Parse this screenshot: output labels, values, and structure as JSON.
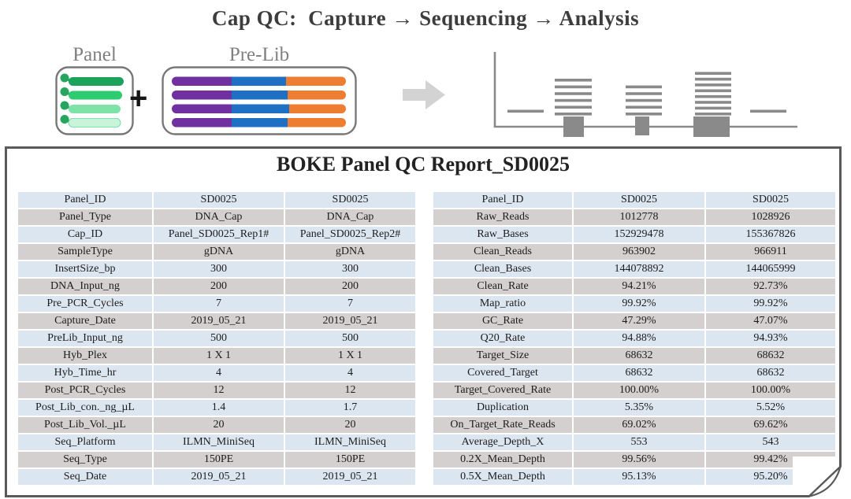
{
  "page_title": "Cap QC:  Capture → Sequencing → Analysis",
  "diagram": {
    "panel_label": "Panel",
    "prelib_label": "Pre-Lib",
    "plus": "+",
    "panel_bar_colors": [
      "#1ba35c",
      "#2ecc71",
      "#7de3a7",
      "#c9f4da"
    ],
    "panel_dot_color": "#26a55e",
    "prelib_segment_colors": [
      "#7030a0",
      "#1f70c4",
      "#ed7d31"
    ],
    "box_border_color": "#777777",
    "arrow_color": "#d3d3d3",
    "coverage_plot": {
      "description": "schematic target coverage plot: read stacks over target blocks on an axis",
      "reads_per_region": [
        1,
        6,
        5,
        8,
        1
      ],
      "has_target_block": [
        false,
        true,
        true,
        true,
        false
      ],
      "color": "#8a8a8a"
    }
  },
  "report": {
    "title": "BOKE Panel QC Report_SD0025",
    "row_colors": {
      "odd": "#dce6f1",
      "even": "#d4d0d0"
    },
    "left_table": {
      "rows": [
        [
          "Panel_ID",
          "SD0025",
          "SD0025"
        ],
        [
          "Panel_Type",
          "DNA_Cap",
          "DNA_Cap"
        ],
        [
          "Cap_ID",
          "Panel_SD0025_Rep1#",
          "Panel_SD0025_Rep2#"
        ],
        [
          "SampleType",
          "gDNA",
          "gDNA"
        ],
        [
          "InsertSize_bp",
          "300",
          "300"
        ],
        [
          "DNA_Input_ng",
          "200",
          "200"
        ],
        [
          "Pre_PCR_Cycles",
          "7",
          "7"
        ],
        [
          "Capture_Date",
          "2019_05_21",
          "2019_05_21"
        ],
        [
          "PreLib_Input_ng",
          "500",
          "500"
        ],
        [
          "Hyb_Plex",
          "1 X 1",
          "1 X 1"
        ],
        [
          "Hyb_Time_hr",
          "4",
          "4"
        ],
        [
          "Post_PCR_Cycles",
          "12",
          "12"
        ],
        [
          "Post_Lib_con._ng_µL",
          "1.4",
          "1.7"
        ],
        [
          "Post_Lib_Vol._µL",
          "20",
          "20"
        ],
        [
          "Seq_Platform",
          "ILMN_MiniSeq",
          "ILMN_MiniSeq"
        ],
        [
          "Seq_Type",
          "150PE",
          "150PE"
        ],
        [
          "Seq_Date",
          "2019_05_21",
          "2019_05_21"
        ]
      ]
    },
    "right_table": {
      "rows": [
        [
          "Panel_ID",
          "SD0025",
          "SD0025"
        ],
        [
          "Raw_Reads",
          "1012778",
          "1028926"
        ],
        [
          "Raw_Bases",
          "152929478",
          "155367826"
        ],
        [
          "Clean_Reads",
          "963902",
          "966911"
        ],
        [
          "Clean_Bases",
          "144078892",
          "144065999"
        ],
        [
          "Clean_Rate",
          "94.21%",
          "92.73%"
        ],
        [
          "Map_ratio",
          "99.92%",
          "99.92%"
        ],
        [
          "GC_Rate",
          "47.29%",
          "47.07%"
        ],
        [
          "Q20_Rate",
          "94.88%",
          "94.93%"
        ],
        [
          "Target_Size",
          "68632",
          "68632"
        ],
        [
          "Covered_Target",
          "68632",
          "68632"
        ],
        [
          "Target_Covered_Rate",
          "100.00%",
          "100.00%"
        ],
        [
          "Duplication",
          "5.35%",
          "5.52%"
        ],
        [
          "On_Target_Rate_Reads",
          "69.02%",
          "69.62%"
        ],
        [
          "Average_Depth_X",
          "553",
          "543"
        ],
        [
          "0.2X_Mean_Depth",
          "99.56%",
          "99.42%"
        ],
        [
          "0.5X_Mean_Depth",
          "95.13%",
          "95.20%"
        ]
      ]
    }
  }
}
